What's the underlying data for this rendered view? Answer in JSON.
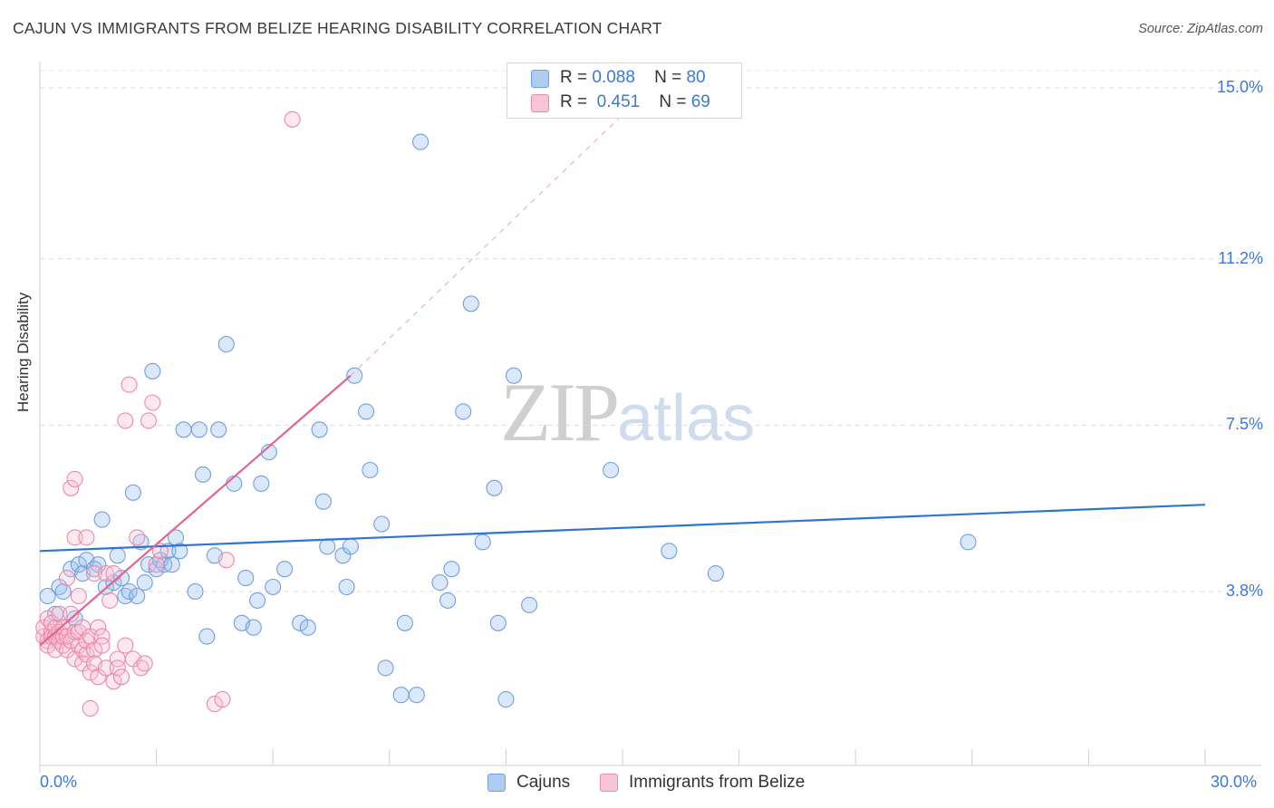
{
  "title": "CAJUN VS IMMIGRANTS FROM BELIZE HEARING DISABILITY CORRELATION CHART",
  "source": "Source: ZipAtlas.com",
  "watermark": {
    "part1": "ZIP",
    "part2": "atlas"
  },
  "legend": {
    "rows": [
      {
        "r_label": "R =",
        "r_value": "0.088",
        "n_label": "N =",
        "n_value": "80",
        "color": "#aecbf0",
        "border": "#6f9fe0"
      },
      {
        "r_label": "R =",
        "r_value": "0.451",
        "n_label": "N =",
        "n_value": "69",
        "color": "#f8c5d6",
        "border": "#e98aaa"
      }
    ]
  },
  "bottom_legend": [
    {
      "label": "Cajuns",
      "color": "#aecbf0",
      "border": "#6f9fe0"
    },
    {
      "label": "Immigrants from Belize",
      "color": "#f8c5d6",
      "border": "#e98aaa"
    }
  ],
  "chart_data": {
    "type": "scatter",
    "title": "CAJUN VS IMMIGRANTS FROM BELIZE HEARING DISABILITY CORRELATION CHART",
    "xlabel": "",
    "ylabel": "Hearing Disability",
    "xlim": [
      0,
      30
    ],
    "ylim": [
      0,
      15.5
    ],
    "x_tick_labels": [
      "0.0%",
      "30.0%"
    ],
    "y_ticks": [
      3.8,
      7.5,
      11.2,
      15.0
    ],
    "y_tick_labels": [
      "3.8%",
      "7.5%",
      "11.2%",
      "15.0%"
    ],
    "x_ticks_minor": [
      3,
      6,
      9,
      12,
      15,
      18,
      21,
      24,
      27,
      30
    ],
    "series": [
      {
        "name": "Cajuns",
        "color": "#6f9fe0",
        "fill": "rgba(150,190,240,0.35)",
        "trend": {
          "x": [
            0,
            30
          ],
          "y": [
            4.7,
            5.73
          ]
        },
        "points": [
          [
            0.2,
            3.7
          ],
          [
            0.4,
            3.3
          ],
          [
            0.5,
            3.9
          ],
          [
            0.6,
            3.8
          ],
          [
            0.8,
            4.3
          ],
          [
            0.9,
            3.2
          ],
          [
            1.0,
            4.4
          ],
          [
            1.1,
            4.2
          ],
          [
            1.2,
            4.5
          ],
          [
            1.4,
            4.3
          ],
          [
            1.5,
            4.4
          ],
          [
            1.6,
            5.4
          ],
          [
            1.7,
            3.9
          ],
          [
            1.9,
            4.0
          ],
          [
            2.0,
            4.6
          ],
          [
            2.1,
            4.1
          ],
          [
            2.2,
            3.7
          ],
          [
            2.3,
            3.8
          ],
          [
            2.4,
            6.0
          ],
          [
            2.5,
            3.7
          ],
          [
            2.6,
            4.9
          ],
          [
            2.7,
            4.0
          ],
          [
            2.8,
            4.4
          ],
          [
            2.9,
            8.7
          ],
          [
            3.0,
            4.3
          ],
          [
            3.1,
            4.5
          ],
          [
            3.2,
            4.4
          ],
          [
            3.3,
            4.7
          ],
          [
            3.4,
            4.4
          ],
          [
            3.5,
            5.0
          ],
          [
            3.6,
            4.7
          ],
          [
            3.7,
            7.4
          ],
          [
            4.0,
            3.8
          ],
          [
            4.1,
            7.4
          ],
          [
            4.2,
            6.4
          ],
          [
            4.3,
            2.8
          ],
          [
            4.5,
            4.6
          ],
          [
            4.6,
            7.4
          ],
          [
            4.8,
            9.3
          ],
          [
            5.0,
            6.2
          ],
          [
            5.2,
            3.1
          ],
          [
            5.3,
            4.1
          ],
          [
            5.5,
            3.0
          ],
          [
            5.6,
            3.6
          ],
          [
            5.7,
            6.2
          ],
          [
            5.9,
            6.9
          ],
          [
            6.0,
            3.9
          ],
          [
            6.3,
            4.3
          ],
          [
            6.7,
            3.1
          ],
          [
            6.9,
            3.0
          ],
          [
            7.2,
            7.4
          ],
          [
            7.3,
            5.8
          ],
          [
            7.4,
            4.8
          ],
          [
            7.8,
            4.6
          ],
          [
            7.9,
            3.9
          ],
          [
            8.0,
            4.8
          ],
          [
            8.1,
            8.6
          ],
          [
            8.4,
            7.8
          ],
          [
            8.5,
            6.5
          ],
          [
            8.8,
            5.3
          ],
          [
            8.9,
            2.1
          ],
          [
            9.3,
            1.5
          ],
          [
            9.4,
            3.1
          ],
          [
            9.7,
            1.5
          ],
          [
            9.8,
            13.8
          ],
          [
            10.3,
            4.0
          ],
          [
            10.5,
            3.6
          ],
          [
            10.6,
            4.3
          ],
          [
            10.9,
            7.8
          ],
          [
            11.1,
            10.2
          ],
          [
            11.4,
            4.9
          ],
          [
            11.7,
            6.1
          ],
          [
            11.8,
            3.1
          ],
          [
            12.0,
            1.4
          ],
          [
            12.2,
            8.6
          ],
          [
            12.6,
            3.5
          ],
          [
            14.7,
            6.5
          ],
          [
            16.2,
            4.7
          ],
          [
            17.4,
            4.2
          ],
          [
            23.9,
            4.9
          ]
        ]
      },
      {
        "name": "Immigrants from Belize",
        "color": "#e98aaa",
        "fill": "rgba(248,190,210,0.35)",
        "trend": {
          "x": [
            0,
            8.0
          ],
          "y": [
            2.6,
            8.6
          ]
        },
        "trend_extension": {
          "x": [
            8.0,
            15.0
          ],
          "y": [
            8.6,
            14.4
          ]
        },
        "points": [
          [
            0.1,
            2.8
          ],
          [
            0.1,
            3.0
          ],
          [
            0.2,
            2.7
          ],
          [
            0.2,
            3.2
          ],
          [
            0.2,
            2.6
          ],
          [
            0.3,
            2.9
          ],
          [
            0.3,
            2.8
          ],
          [
            0.3,
            3.1
          ],
          [
            0.4,
            2.5
          ],
          [
            0.4,
            2.8
          ],
          [
            0.4,
            3.0
          ],
          [
            0.5,
            2.9
          ],
          [
            0.5,
            2.7
          ],
          [
            0.5,
            3.3
          ],
          [
            0.6,
            2.6
          ],
          [
            0.6,
            2.8
          ],
          [
            0.6,
            3.0
          ],
          [
            0.7,
            2.5
          ],
          [
            0.7,
            2.8
          ],
          [
            0.7,
            4.1
          ],
          [
            0.8,
            3.3
          ],
          [
            0.8,
            2.7
          ],
          [
            0.8,
            6.1
          ],
          [
            0.9,
            2.3
          ],
          [
            0.9,
            2.9
          ],
          [
            0.9,
            5.0
          ],
          [
            0.9,
            6.3
          ],
          [
            1.0,
            2.6
          ],
          [
            1.0,
            3.7
          ],
          [
            1.0,
            2.9
          ],
          [
            1.1,
            2.5
          ],
          [
            1.1,
            3.0
          ],
          [
            1.1,
            2.2
          ],
          [
            1.2,
            2.4
          ],
          [
            1.2,
            2.7
          ],
          [
            1.2,
            5.0
          ],
          [
            1.3,
            2.0
          ],
          [
            1.3,
            2.8
          ],
          [
            1.3,
            1.2
          ],
          [
            1.4,
            2.5
          ],
          [
            1.4,
            2.2
          ],
          [
            1.4,
            4.2
          ],
          [
            1.5,
            1.9
          ],
          [
            1.5,
            3.0
          ],
          [
            1.6,
            2.8
          ],
          [
            1.6,
            2.6
          ],
          [
            1.7,
            2.1
          ],
          [
            1.7,
            4.2
          ],
          [
            1.8,
            3.6
          ],
          [
            1.9,
            1.8
          ],
          [
            1.9,
            4.2
          ],
          [
            2.0,
            2.3
          ],
          [
            2.0,
            2.1
          ],
          [
            2.1,
            1.9
          ],
          [
            2.2,
            2.6
          ],
          [
            2.2,
            7.6
          ],
          [
            2.3,
            8.4
          ],
          [
            2.4,
            2.3
          ],
          [
            2.5,
            5.0
          ],
          [
            2.6,
            2.1
          ],
          [
            2.7,
            2.2
          ],
          [
            2.8,
            7.6
          ],
          [
            2.9,
            8.0
          ],
          [
            3.0,
            4.4
          ],
          [
            3.1,
            4.7
          ],
          [
            4.5,
            1.3
          ],
          [
            4.7,
            1.4
          ],
          [
            4.8,
            4.5
          ],
          [
            6.5,
            14.3
          ]
        ]
      }
    ]
  }
}
